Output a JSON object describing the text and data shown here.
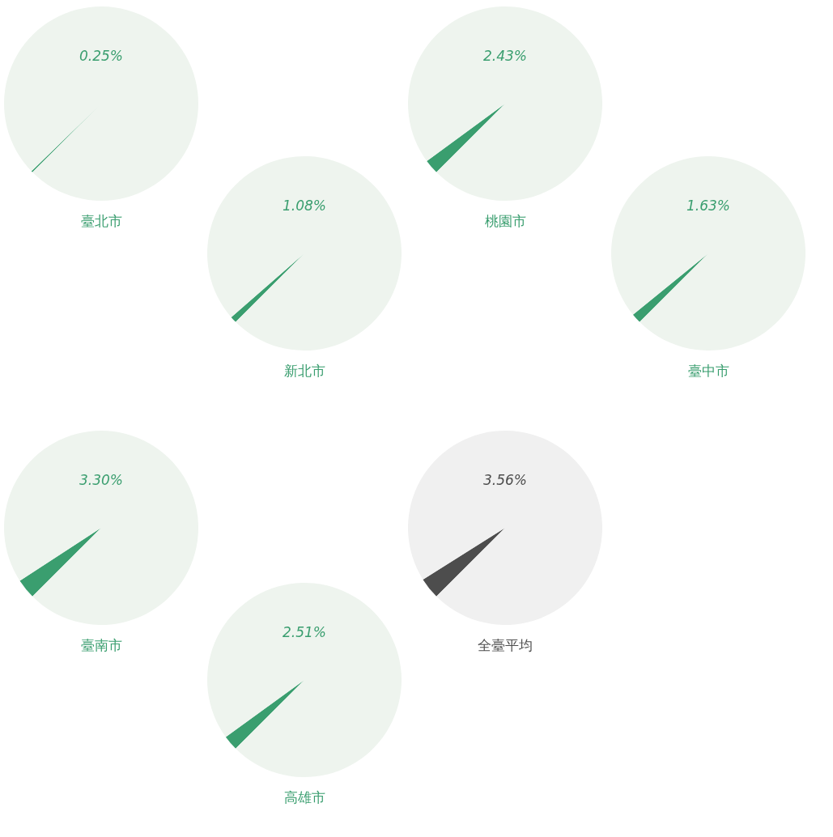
{
  "chart_data": [
    {
      "type": "pie",
      "title": "臺北市",
      "categories": [
        null,
        null
      ],
      "values": [
        0.25,
        99.75
      ],
      "colors": [
        "#3a9e6f",
        "#eef4ee"
      ],
      "annotations": [
        "0.25%"
      ]
    },
    {
      "type": "pie",
      "title": "新北市",
      "categories": [
        null,
        null
      ],
      "values": [
        1.08,
        98.92
      ],
      "colors": [
        "#3a9e6f",
        "#eef4ee"
      ],
      "annotations": [
        "1.08%"
      ]
    },
    {
      "type": "pie",
      "title": "桃園市",
      "categories": [
        null,
        null
      ],
      "values": [
        2.43,
        97.57
      ],
      "colors": [
        "#3a9e6f",
        "#eef4ee"
      ],
      "annotations": [
        "2.43%"
      ]
    },
    {
      "type": "pie",
      "title": "臺中市",
      "categories": [
        null,
        null
      ],
      "values": [
        1.63,
        98.37
      ],
      "colors": [
        "#3a9e6f",
        "#eef4ee"
      ],
      "annotations": [
        "1.63%"
      ]
    },
    {
      "type": "pie",
      "title": "臺南市",
      "categories": [
        null,
        null
      ],
      "values": [
        3.3,
        96.7
      ],
      "colors": [
        "#3a9e6f",
        "#eef4ee"
      ],
      "annotations": [
        "3.30%"
      ]
    },
    {
      "type": "pie",
      "title": "高雄市",
      "categories": [
        null,
        null
      ],
      "values": [
        2.51,
        97.49
      ],
      "colors": [
        "#3a9e6f",
        "#eef4ee"
      ],
      "annotations": [
        "2.51%"
      ]
    },
    {
      "type": "pie",
      "title": "全臺平均",
      "categories": [
        null,
        null
      ],
      "values": [
        3.56,
        96.44
      ],
      "colors": [
        "#4d4d4d",
        "#f0f0f0"
      ],
      "annotations": [
        "3.56%"
      ]
    }
  ]
}
